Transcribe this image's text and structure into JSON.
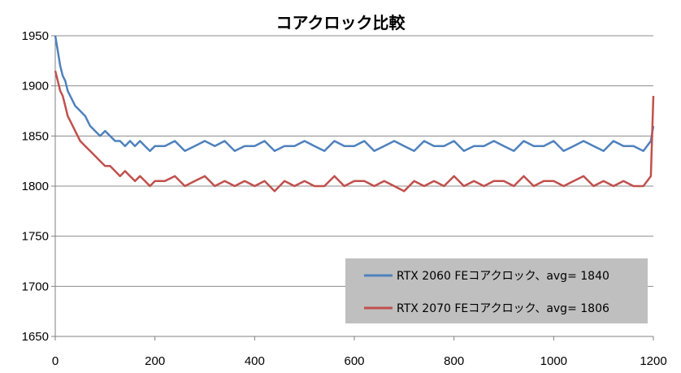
{
  "chart_data": {
    "type": "line",
    "title": "コアクロック比較",
    "xlabel": "",
    "ylabel": "",
    "xlim": [
      0,
      1200
    ],
    "ylim": [
      1650,
      1950
    ],
    "x_ticks": [
      0,
      200,
      400,
      600,
      800,
      1000,
      1200
    ],
    "y_ticks": [
      1650,
      1700,
      1750,
      1800,
      1850,
      1900,
      1950
    ],
    "grid": "horizontal",
    "legend_position": "bottom-right",
    "colors": {
      "RTX 2060 FE": "#4f81bd",
      "RTX 2070 FE": "#c0504d",
      "legend_bg": "#bfbfbf",
      "grid": "#8c8c8c"
    },
    "series": [
      {
        "name": "RTX 2060 FE",
        "legend_label": "RTX 2060 FEコアクロック、avg= 1840",
        "x": [
          0,
          5,
          10,
          15,
          20,
          25,
          30,
          35,
          40,
          50,
          60,
          70,
          80,
          90,
          100,
          110,
          120,
          130,
          140,
          150,
          160,
          170,
          180,
          190,
          200,
          220,
          240,
          260,
          280,
          300,
          320,
          340,
          360,
          380,
          400,
          420,
          440,
          460,
          480,
          500,
          520,
          540,
          560,
          580,
          600,
          620,
          640,
          660,
          680,
          700,
          720,
          740,
          760,
          780,
          800,
          820,
          840,
          860,
          880,
          900,
          920,
          940,
          960,
          980,
          1000,
          1020,
          1040,
          1060,
          1080,
          1100,
          1120,
          1140,
          1160,
          1180,
          1195,
          1200
        ],
        "values": [
          1950,
          1935,
          1920,
          1910,
          1905,
          1895,
          1890,
          1885,
          1880,
          1875,
          1870,
          1860,
          1855,
          1850,
          1855,
          1850,
          1845,
          1845,
          1840,
          1845,
          1840,
          1845,
          1840,
          1835,
          1840,
          1840,
          1845,
          1835,
          1840,
          1845,
          1840,
          1845,
          1835,
          1840,
          1840,
          1845,
          1835,
          1840,
          1840,
          1845,
          1840,
          1835,
          1845,
          1840,
          1840,
          1845,
          1835,
          1840,
          1845,
          1840,
          1835,
          1845,
          1840,
          1840,
          1845,
          1835,
          1840,
          1840,
          1845,
          1840,
          1835,
          1845,
          1840,
          1840,
          1845,
          1835,
          1840,
          1845,
          1840,
          1835,
          1845,
          1840,
          1840,
          1835,
          1845,
          1860
        ]
      },
      {
        "name": "RTX 2070 FE",
        "legend_label": "RTX 2070 FEコアクロック、avg= 1806",
        "x": [
          0,
          5,
          10,
          15,
          20,
          25,
          30,
          35,
          40,
          50,
          60,
          70,
          80,
          90,
          100,
          110,
          120,
          130,
          140,
          150,
          160,
          170,
          180,
          190,
          200,
          220,
          240,
          260,
          280,
          300,
          320,
          340,
          360,
          380,
          400,
          420,
          440,
          460,
          480,
          500,
          520,
          540,
          560,
          580,
          600,
          620,
          640,
          660,
          680,
          700,
          720,
          740,
          760,
          780,
          800,
          820,
          840,
          860,
          880,
          900,
          920,
          940,
          960,
          980,
          1000,
          1020,
          1040,
          1060,
          1080,
          1100,
          1120,
          1140,
          1160,
          1180,
          1195,
          1200
        ],
        "values": [
          1915,
          1905,
          1895,
          1890,
          1880,
          1870,
          1865,
          1860,
          1855,
          1845,
          1840,
          1835,
          1830,
          1825,
          1820,
          1820,
          1815,
          1810,
          1815,
          1810,
          1805,
          1810,
          1805,
          1800,
          1805,
          1805,
          1810,
          1800,
          1805,
          1810,
          1800,
          1805,
          1800,
          1805,
          1800,
          1805,
          1795,
          1805,
          1800,
          1805,
          1800,
          1800,
          1810,
          1800,
          1805,
          1805,
          1800,
          1805,
          1800,
          1795,
          1805,
          1800,
          1805,
          1800,
          1810,
          1800,
          1805,
          1800,
          1805,
          1805,
          1800,
          1810,
          1800,
          1805,
          1805,
          1800,
          1805,
          1810,
          1800,
          1805,
          1800,
          1805,
          1800,
          1800,
          1810,
          1890
        ]
      }
    ]
  }
}
